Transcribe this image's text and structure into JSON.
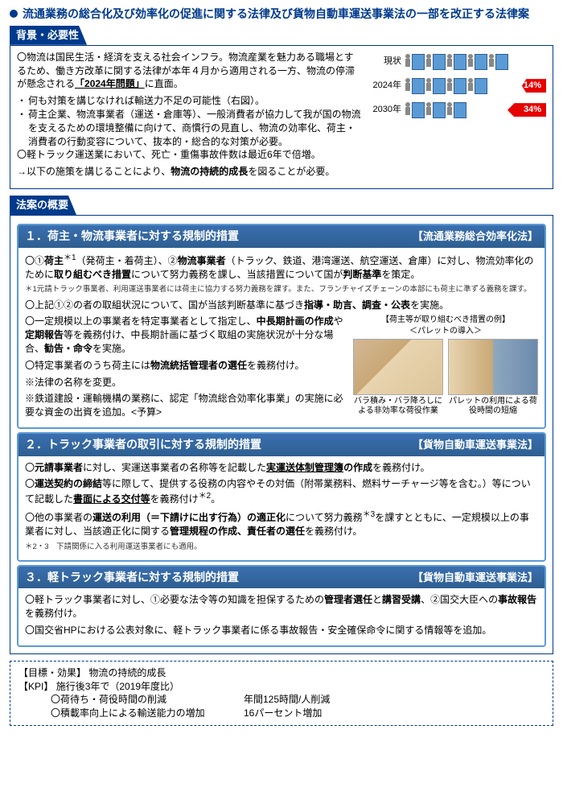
{
  "title": "流通業務の総合化及び効率化の促進に関する法律及び貨物自動車運送事業法の一部を改正する法律案",
  "sec1_tab": "背景・必要性",
  "bg": {
    "p1_pre": "〇物流は国民生活・経済を支える社会インフラ。物流産業を魅力ある職場とするため、働き方改革に関する法律が本年４月から適用される一方、物流の停滞が懸念される",
    "p1_strong": "「2024年問題」",
    "p1_post": "に直面。",
    "li1": "何も対策を講じなければ輸送力不足の可能性（右図）。",
    "li2": "荷主企業、物流事業者（運送・倉庫等）、一般消費者が協力して我が国の物流を支えるための環境整備に向けて、商慣行の見直し、物流の効率化、荷主・消費者の行動変容について、抜本的・総合的な対策が必要。",
    "p2": "〇軽トラック運送業において、死亡・重傷事故件数は最近6年で倍増。",
    "p3_pre": "→以下の施策を講じることにより、",
    "p3_strong": "物流の持続的成長",
    "p3_post": "を図ることが必要。",
    "chart": {
      "rows": [
        {
          "label": "現状",
          "arrow": ""
        },
        {
          "label": "2024年",
          "arrow": "14%"
        },
        {
          "label": "2030年",
          "arrow": "34%"
        }
      ]
    }
  },
  "sec2_tab": "法案の概要",
  "s1": {
    "head_left": "１．荷主・物流事業者に対する規制的措置",
    "head_right": "【流通業務総合効率化法】",
    "p1": "〇①<b>荷主</b><sup>＊1</sup>（発荷主・着荷主）、②<b>物流事業者</b>（トラック、鉄道、港湾運送、航空運送、倉庫）に対し、物流効率化のために<b>取り組むべき措置</b>について努力義務を課し、当該措置について国が<b>判断基準</b>を策定。",
    "note1": "＊1元請トラック事業者、利用運送事業者には荷主に協力する努力義務を課す。また、フランチャイズチェーンの本部にも荷主に準ずる義務を課す。",
    "p2": "〇上記①②の者の取組状況について、国が当該判断基準に基づき<b>指導・助言、調査・公表</b>を実施。",
    "p3": "〇一定規模以上の事業者を特定事業者として指定し、<b>中長期計画の作成</b>や<b>定期報告</b>等を義務付け、中長期計画に基づく取組の実施状況が十分な場合、<b>勧告・命令</b>を実施。",
    "p4": "〇特定事業者のうち荷主には<b>物流統括管理者の選任</b>を義務付け。",
    "p5": "※法律の名称を変更。",
    "p6": "※鉄道建設・運輸機構の業務に、認定「物流総合効率化事業」の実施に必要な資金の出資を追加。<予算>",
    "example_label": "【荷主等が取り組むべき措置の例】",
    "example_sub": "＜パレットの導入＞",
    "cap1": "バラ積み・バラ降ろしによる非効率な荷役作業",
    "cap2": "パレットの利用による荷役時間の短縮"
  },
  "s2": {
    "head_left": "２．トラック事業者の取引に対する規制的措置",
    "head_right": "【貨物自動車運送事業法】",
    "p1": "〇<b>元請事業者</b>に対し、実運送事業者の名称等を記載した<b><u>実運送体制管理簿</u>の作成</b>を義務付け。",
    "p2": "〇<b>運送契約の締結</b>等に際して、提供する役務の内容やその対価（附帯業務料、燃料サーチャージ等を含む。）等について記載した<b><u>書面による交付等</u></b>を義務付け<sup>＊2</sup>。",
    "p3": "〇他の事業者の<b>運送の利用（＝下請けに出す行為）の適正化</b>について努力義務<sup>＊3</sup>を課すとともに、一定規模以上の事業者に対し、当該適正化に関する<b>管理規程の作成、責任者の選任</b>を義務付け。",
    "note2": "＊2・3　下請関係に入る利用運送事業者にも適用。"
  },
  "s3": {
    "head_left": "３．軽トラック事業者に対する規制的措置",
    "head_right": "【貨物自動車運送事業法】",
    "p1": "〇軽トラック事業者に対し、①必要な法令等の知識を担保するための<b>管理者選任</b>と<b>講習受講</b>、②国交大臣への<b>事故報告</b>を義務付け。",
    "p2": "〇国交省HPにおける公表対象に、軽トラック事業者に係る事故報告・安全確保命令に関する情報等を追加。"
  },
  "kpi": {
    "goal_label": "【目標・効果】",
    "goal": "物流の持続的成長",
    "kpi_label": "【KPI】",
    "kpi_line": "施行後3年で（2019年度比）",
    "r1_l": "〇荷待ち・荷役時間の削減",
    "r1_v": "年間125時間/人削減",
    "r2_l": "〇積載率向上による輸送能力の増加",
    "r2_v": "16パーセント増加"
  }
}
